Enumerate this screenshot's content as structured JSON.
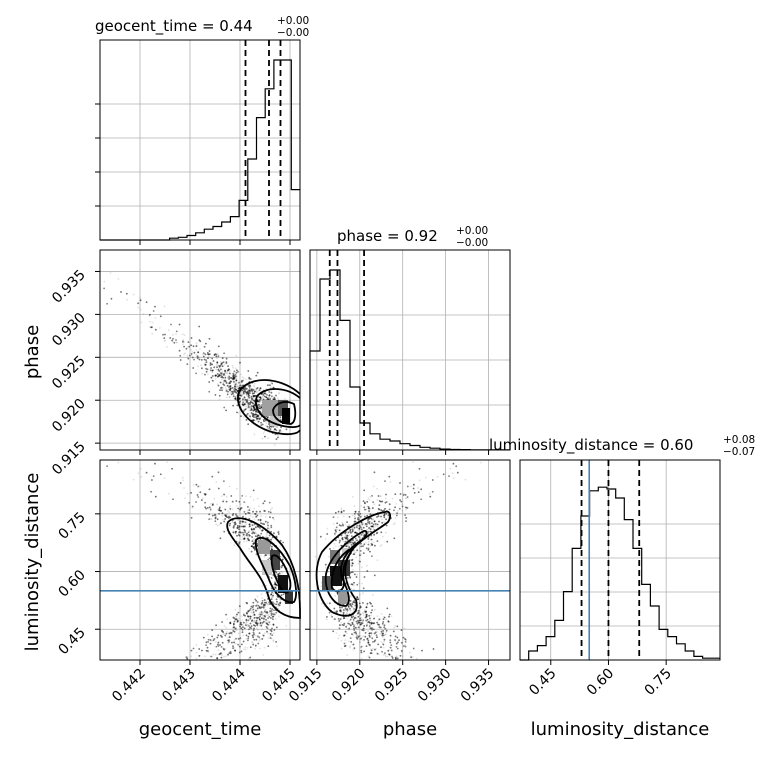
{
  "chart_data": {
    "type": "corner",
    "parameters": [
      "geocent_time",
      "phase",
      "luminosity_distance"
    ],
    "titles": [
      {
        "name": "geocent_time",
        "value": "0.44",
        "plus": "+0.00",
        "minus": "−0.00"
      },
      {
        "name": "phase",
        "value": "0.92",
        "plus": "+0.00",
        "minus": "−0.00"
      },
      {
        "name": "luminosity_distance",
        "value": "0.60",
        "plus": "+0.08",
        "minus": "−0.07"
      }
    ],
    "ranges": {
      "geocent_time": [
        0.4412,
        0.4452
      ],
      "phase": [
        0.9142,
        0.9375
      ],
      "luminosity_distance": [
        0.37,
        0.89
      ]
    },
    "ticks": {
      "geocent_time": [
        "0.442",
        "0.443",
        "0.444",
        "0.445"
      ],
      "phase": [
        "0.915",
        "0.920",
        "0.925",
        "0.930",
        "0.935"
      ],
      "luminosity_distance": [
        "0.45",
        "0.60",
        "0.75"
      ]
    },
    "quantiles": {
      "geocent_time": [
        0.44411,
        0.44458,
        0.44481
      ],
      "phase": [
        0.9165,
        0.9174,
        0.9205
      ],
      "luminosity_distance": [
        0.53,
        0.6,
        0.68
      ]
    },
    "truths": {
      "luminosity_distance": 0.55
    },
    "hist_geocent_time": [
      0,
      0,
      0,
      0,
      0,
      0,
      0,
      0,
      0.01,
      0.015,
      0.025,
      0.04,
      0.06,
      0.075,
      0.1,
      0.13,
      0.22,
      0.45,
      0.68,
      0.84,
      1.0,
      1.0,
      0.28
    ],
    "hist_phase": [
      0.55,
      0.95,
      1.0,
      0.72,
      0.35,
      0.15,
      0.09,
      0.06,
      0.05,
      0.035,
      0.025,
      0.015,
      0.01,
      0.005,
      0.003,
      0.002,
      0.001,
      0.001,
      0.0005,
      0.0003
    ],
    "hist_luminosity_distance": [
      0,
      0.05,
      0.08,
      0.13,
      0.22,
      0.38,
      0.62,
      0.8,
      0.94,
      0.96,
      0.95,
      0.9,
      0.78,
      0.62,
      0.42,
      0.3,
      0.17,
      0.13,
      0.09,
      0.05,
      0.02,
      0.01,
      0.01
    ]
  },
  "colors": {
    "truth": "#4682b4",
    "grid": "#b0b0b0",
    "line": "#000000"
  }
}
